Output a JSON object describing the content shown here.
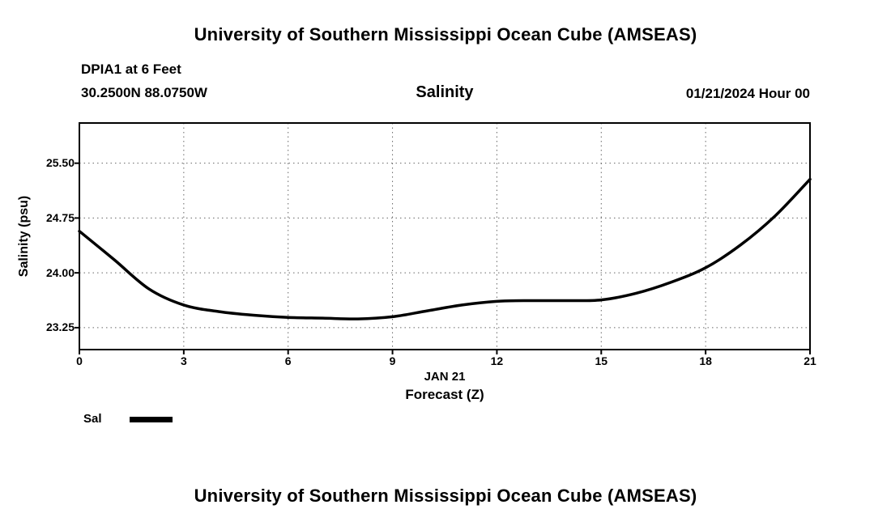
{
  "page": {
    "top_title": "University of Southern Mississippi Ocean Cube (AMSEAS)",
    "bottom_title": "University of Southern Mississippi Ocean Cube (AMSEAS)"
  },
  "header": {
    "station_line1": "DPIA1 at 6 Feet",
    "station_line2": "30.2500N  88.0750W",
    "chart_title": "Salinity",
    "valid_time": "01/21/2024 Hour 00"
  },
  "chart_data": {
    "type": "line",
    "title": "Salinity",
    "station": "DPIA1 at 6 Feet",
    "location": "30.2500N 88.0750W",
    "valid_time": "01/21/2024 Hour 00",
    "ylabel": "Salinity (psu)",
    "xlabel_line1": "JAN 21",
    "xlabel_line2": "Forecast (Z)",
    "xlim": [
      0,
      21
    ],
    "ylim": [
      22.95,
      26.05
    ],
    "xticks": [
      0,
      3,
      6,
      9,
      12,
      15,
      18,
      21
    ],
    "xtick_labels": [
      "0",
      "3",
      "6",
      "9",
      "12",
      "15",
      "18",
      "21"
    ],
    "yticks": [
      23.25,
      24.0,
      24.75,
      25.5
    ],
    "ytick_labels": [
      "23.25",
      "24.00",
      "24.75",
      "25.50"
    ],
    "grid": true,
    "line_color": "#000000",
    "line_width": 3.5,
    "legend": [
      {
        "label": "Sal",
        "color": "#000000"
      }
    ],
    "series": [
      {
        "name": "Sal",
        "x": [
          0,
          1,
          2,
          3,
          4,
          5,
          6,
          7,
          8,
          9,
          10,
          11,
          12,
          13,
          14,
          15,
          16,
          17,
          18,
          19,
          20,
          21
        ],
        "values": [
          24.57,
          24.18,
          23.78,
          23.56,
          23.47,
          23.42,
          23.39,
          23.38,
          23.37,
          23.4,
          23.48,
          23.56,
          23.61,
          23.62,
          23.62,
          23.63,
          23.72,
          23.87,
          24.07,
          24.38,
          24.78,
          25.28
        ]
      }
    ]
  }
}
